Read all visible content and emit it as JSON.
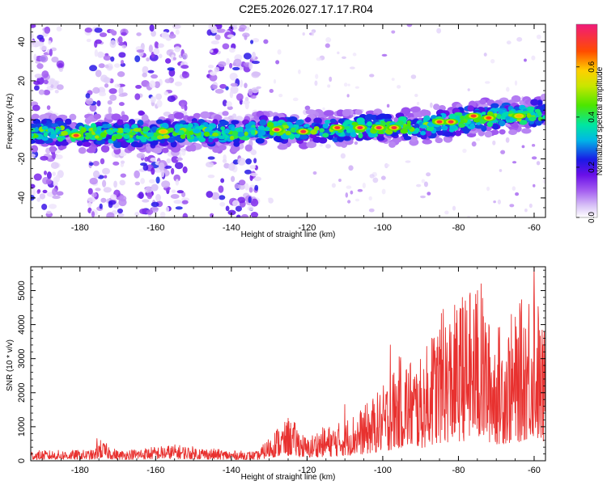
{
  "title": "C2E5.2026.027.17.17.R04",
  "colorbar": {
    "label": "Normalized spectral amplitude",
    "ticks": [
      "0.0",
      "0.2",
      "0.4",
      "0.6"
    ],
    "tick_values": [
      0.0,
      0.2,
      0.4,
      0.6
    ],
    "range": [
      0,
      0.77
    ]
  },
  "chart_data": [
    {
      "type": "heatmap",
      "xlabel": "Height of straight line (km)",
      "ylabel": "Frequency (Hz)",
      "xlim": [
        -193,
        -57
      ],
      "ylim": [
        -50,
        49
      ],
      "x_ticks": [
        -180,
        -160,
        -140,
        -120,
        -100,
        -80,
        -60
      ],
      "x_tick_labels": [
        "-180",
        "-160",
        "-140",
        "-120",
        "-100",
        "-80",
        "-60"
      ],
      "y_ticks": [
        -40,
        -20,
        0,
        20,
        40
      ],
      "y_tick_labels": [
        "-40",
        "-20",
        "0",
        "20",
        "40"
      ],
      "ridge": {
        "description_free_values": true,
        "x": [
          -193,
          -175,
          -160,
          -150,
          -140,
          -133,
          -120,
          -110,
          -100,
          -90,
          -80,
          -70,
          -60,
          -57
        ],
        "freq": [
          -6,
          -7,
          -7,
          -6,
          -7,
          -5,
          -5,
          -4,
          -4,
          -3,
          -1,
          2,
          3,
          3
        ]
      },
      "scatter_bands": [
        [
          -193,
          -185
        ],
        [
          -178,
          -168
        ],
        [
          -165,
          -152
        ],
        [
          -146,
          -133
        ]
      ],
      "hot_spots": [
        {
          "x": -181,
          "y": -8,
          "amp": 0.7
        },
        {
          "x": -158,
          "y": -6,
          "amp": 0.6
        },
        {
          "x": -128,
          "y": -5,
          "amp": 0.75
        },
        {
          "x": -121,
          "y": -6,
          "amp": 0.72
        },
        {
          "x": -112,
          "y": -4,
          "amp": 0.7
        },
        {
          "x": -106,
          "y": -4,
          "amp": 0.74
        },
        {
          "x": -101,
          "y": -4,
          "amp": 0.73
        },
        {
          "x": -97,
          "y": -4,
          "amp": 0.72
        },
        {
          "x": -85,
          "y": -1,
          "amp": 0.7
        },
        {
          "x": -82,
          "y": -1,
          "amp": 0.72
        },
        {
          "x": -76,
          "y": 2,
          "amp": 0.7
        },
        {
          "x": -72,
          "y": 1,
          "amp": 0.68
        },
        {
          "x": -64,
          "y": 2,
          "amp": 0.6
        }
      ]
    },
    {
      "type": "line",
      "xlabel": "Height of straight line (km)",
      "ylabel": "SNR (10 * v/v)",
      "xlim": [
        -193,
        -57
      ],
      "ylim": [
        0,
        5700
      ],
      "x_ticks": [
        -180,
        -160,
        -140,
        -120,
        -100,
        -80,
        -60
      ],
      "x_tick_labels": [
        "-180",
        "-160",
        "-140",
        "-120",
        "-100",
        "-80",
        "-60"
      ],
      "y_ticks": [
        0,
        1000,
        2000,
        3000,
        4000,
        5000
      ],
      "y_tick_labels": [
        "0",
        "1000",
        "2000",
        "3000",
        "4000",
        "5000"
      ],
      "color": "#e8312f",
      "envelope": {
        "x": [
          -193,
          -176,
          -175,
          -170,
          -155,
          -140,
          -133,
          -128,
          -124,
          -120,
          -117,
          -112,
          -105,
          -100,
          -95,
          -90,
          -85,
          -80,
          -75,
          -70,
          -65,
          -60,
          -58
        ],
        "max": [
          300,
          320,
          650,
          300,
          480,
          300,
          280,
          1000,
          1250,
          650,
          950,
          1100,
          1600,
          2200,
          3200,
          3000,
          4300,
          4700,
          5200,
          4000,
          4300,
          5700,
          4000
        ]
      },
      "peaks": [
        {
          "x": -175.5,
          "y": 650
        },
        {
          "x": -125,
          "y": 1250
        },
        {
          "x": -110,
          "y": 1650
        },
        {
          "x": -98,
          "y": 3400
        },
        {
          "x": -87,
          "y": 3600
        },
        {
          "x": -84,
          "y": 4450
        },
        {
          "x": -79,
          "y": 4800
        },
        {
          "x": -77,
          "y": 4850
        },
        {
          "x": -75,
          "y": 5000
        },
        {
          "x": -74,
          "y": 5200
        },
        {
          "x": -72,
          "y": 4000
        },
        {
          "x": -66,
          "y": 4300
        },
        {
          "x": -60,
          "y": 5700
        }
      ]
    }
  ]
}
